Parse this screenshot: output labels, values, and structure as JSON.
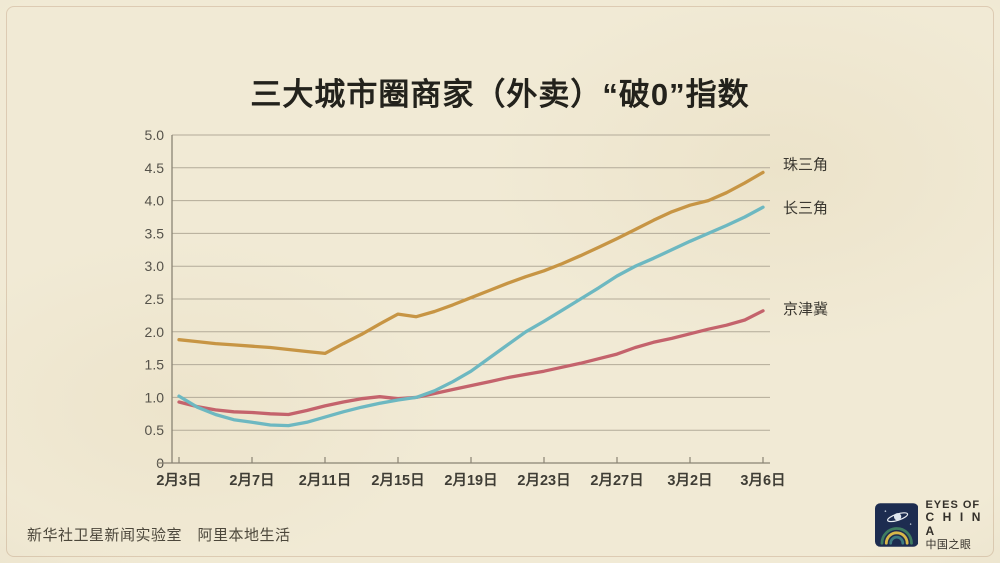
{
  "title": "三大城市圈商家（外卖）“破0”指数",
  "footer": {
    "credit": "新华社卫星新闻实验室　阿里本地生活"
  },
  "logo": {
    "line1": "EYES OF",
    "line2": "C H I N A",
    "line3": "中国之眼"
  },
  "colors": {
    "background": "#f1ead5",
    "grid": "#b3ab99",
    "axis": "#8a8474",
    "pearl_delta": "#c79544",
    "yangtze_delta": "#6db8c1",
    "jingjinji": "#c4636c"
  },
  "chart_data": {
    "type": "line",
    "title": "三大城市圈商家（外卖）“破0”指数",
    "xlabel": "",
    "ylabel": "",
    "ylim": [
      0,
      5
    ],
    "grid": true,
    "legend_position": "right-of-line-end",
    "x_tick_labels": [
      "2月3日",
      "2月7日",
      "2月11日",
      "2月15日",
      "2月19日",
      "2月23日",
      "2月27日",
      "3月2日",
      "3月6日"
    ],
    "x_tick_days": [
      0,
      4,
      8,
      12,
      16,
      20,
      24,
      28,
      32
    ],
    "y_tick_labels": [
      "5.0",
      "4.5",
      "4.0",
      "3.5",
      "3.0",
      "2.5",
      "2.0",
      "1.5",
      "1.0",
      "0.5",
      "0"
    ],
    "y_tick_values": [
      5.0,
      4.5,
      4.0,
      3.5,
      3.0,
      2.5,
      2.0,
      1.5,
      1.0,
      0.5,
      0
    ],
    "series": [
      {
        "name": "京津冀",
        "color": "#c4636c",
        "values": [
          0.93,
          0.86,
          0.81,
          0.78,
          0.77,
          0.75,
          0.74,
          0.8,
          0.87,
          0.93,
          0.98,
          1.01,
          0.98,
          1.0,
          1.06,
          1.12,
          1.18,
          1.24,
          1.3,
          1.35,
          1.4,
          1.46,
          1.52,
          1.59,
          1.66,
          1.76,
          1.84,
          1.9,
          1.97,
          2.04,
          2.1,
          2.18,
          2.32
        ]
      },
      {
        "name": "长三角",
        "color": "#6db8c1",
        "values": [
          1.02,
          0.85,
          0.74,
          0.66,
          0.62,
          0.58,
          0.57,
          0.62,
          0.7,
          0.78,
          0.85,
          0.91,
          0.96,
          1.0,
          1.1,
          1.24,
          1.4,
          1.6,
          1.8,
          2.0,
          2.16,
          2.33,
          2.5,
          2.67,
          2.85,
          3.0,
          3.12,
          3.25,
          3.38,
          3.5,
          3.62,
          3.75,
          3.9
        ]
      },
      {
        "name": "珠三角",
        "color": "#c79544",
        "values": [
          1.88,
          1.85,
          1.82,
          1.8,
          1.78,
          1.76,
          1.73,
          1.7,
          1.67,
          1.82,
          1.96,
          2.12,
          2.27,
          2.23,
          2.31,
          2.41,
          2.52,
          2.63,
          2.74,
          2.84,
          2.93,
          3.04,
          3.16,
          3.29,
          3.42,
          3.56,
          3.7,
          3.83,
          3.93,
          4.0,
          4.12,
          4.27,
          4.43
        ]
      }
    ]
  }
}
